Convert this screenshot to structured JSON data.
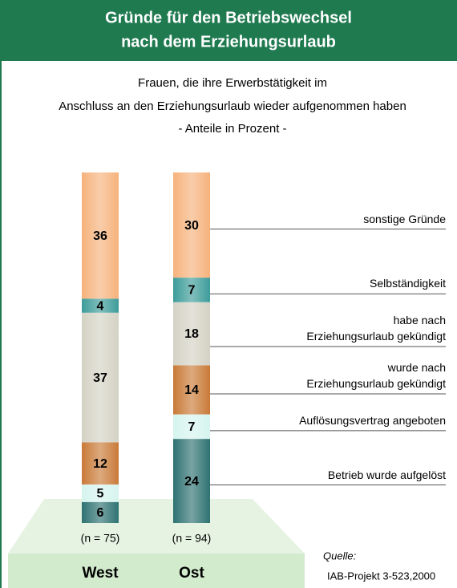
{
  "chart_data": {
    "type": "stacked_bar",
    "title": [
      "Gründe für den Betriebswechsel",
      "nach dem Erziehungsurlaub"
    ],
    "subtitle": [
      "Frauen, die ihre Erwerbstätigkeit im",
      "Anschluss an den Erziehungsurlaub wieder aufgenommen haben",
      "- Anteile in Prozent -"
    ],
    "categories": [
      "West",
      "Ost"
    ],
    "n_labels": [
      "(n = 75)",
      "(n = 94)"
    ],
    "ylim": [
      0,
      100
    ],
    "series": [
      {
        "name": "Betrieb wurde aufgelöst",
        "color": "#2f7272",
        "values": [
          6,
          24
        ]
      },
      {
        "name": "Auflösungsvertrag angeboten",
        "color": "#d6f4ee",
        "values": [
          5,
          7
        ]
      },
      {
        "name": "wurde nach\nErziehungsurlaub gekündigt",
        "color": "#c97a38",
        "values": [
          12,
          14
        ]
      },
      {
        "name": "habe nach\nErziehungsurlaub gekündigt",
        "color": "#d4d2c4",
        "values": [
          37,
          18
        ]
      },
      {
        "name": "Selbständigkeit",
        "color": "#3d9c9a",
        "values": [
          4,
          7
        ]
      },
      {
        "name": "sonstige Gründe",
        "color": "#f6b27c",
        "values": [
          36,
          30
        ]
      }
    ],
    "source": [
      "Quelle:",
      "IAB-Projekt 3-523,2000"
    ]
  }
}
